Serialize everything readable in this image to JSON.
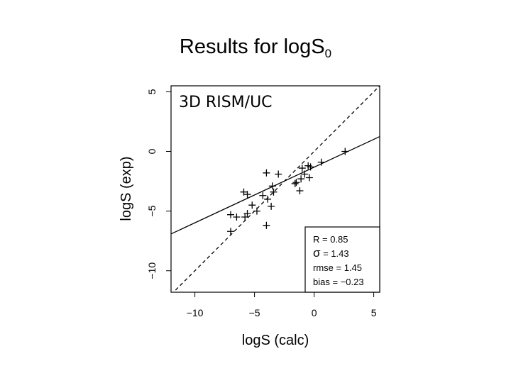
{
  "slide": {
    "title": "Results for logS",
    "title_subscript": "0"
  },
  "chart_data": {
    "type": "scatter",
    "title": "",
    "inset_label": "3D RISM/UC",
    "xlabel": "logS (calc)",
    "ylabel": "logS (exp)",
    "xlim": [
      -12,
      5.5
    ],
    "ylim": [
      -11.8,
      5.5
    ],
    "xticks": [
      -10,
      -5,
      0,
      5
    ],
    "yticks": [
      -10,
      -5,
      0,
      5
    ],
    "xtick_labels": [
      "−10",
      "−5",
      "0",
      "5"
    ],
    "ytick_labels": [
      "−10",
      "−5",
      "0",
      "5"
    ],
    "grid": false,
    "marker": "plus",
    "color": "#000000",
    "points": [
      [
        -7.0,
        -6.7
      ],
      [
        -7.0,
        -5.3
      ],
      [
        -6.5,
        -5.5
      ],
      [
        -5.8,
        -5.5
      ],
      [
        -5.6,
        -5.2
      ],
      [
        -5.2,
        -4.5
      ],
      [
        -4.8,
        -5.0
      ],
      [
        -5.9,
        -3.4
      ],
      [
        -5.6,
        -3.6
      ],
      [
        -4.0,
        -6.2
      ],
      [
        -3.6,
        -4.6
      ],
      [
        -3.9,
        -4.0
      ],
      [
        -3.4,
        -3.4
      ],
      [
        -3.5,
        -2.9
      ],
      [
        -4.3,
        -3.7
      ],
      [
        -4.0,
        -1.8
      ],
      [
        -3.0,
        -1.9
      ],
      [
        -1.5,
        -2.6
      ],
      [
        -1.6,
        -2.7
      ],
      [
        -1.2,
        -3.3
      ],
      [
        -1.1,
        -2.3
      ],
      [
        -1.0,
        -1.4
      ],
      [
        -0.8,
        -1.9
      ],
      [
        -0.4,
        -2.2
      ],
      [
        -0.5,
        -1.2
      ],
      [
        -0.3,
        -1.3
      ],
      [
        0.6,
        -0.9
      ],
      [
        2.6,
        0.0
      ]
    ],
    "lines": [
      {
        "style": "solid",
        "slope": 0.4663,
        "intercept": -1.32
      },
      {
        "style": "dashed",
        "slope": 1,
        "intercept": 0
      }
    ],
    "legend": {
      "placement": "bottom-right",
      "entries": [
        {
          "name": "R",
          "value": "0.85"
        },
        {
          "name": "σ",
          "value": "1.43"
        },
        {
          "name": "rmse",
          "value": "1.45"
        },
        {
          "name": "bias",
          "value": "−0.23"
        }
      ]
    }
  }
}
